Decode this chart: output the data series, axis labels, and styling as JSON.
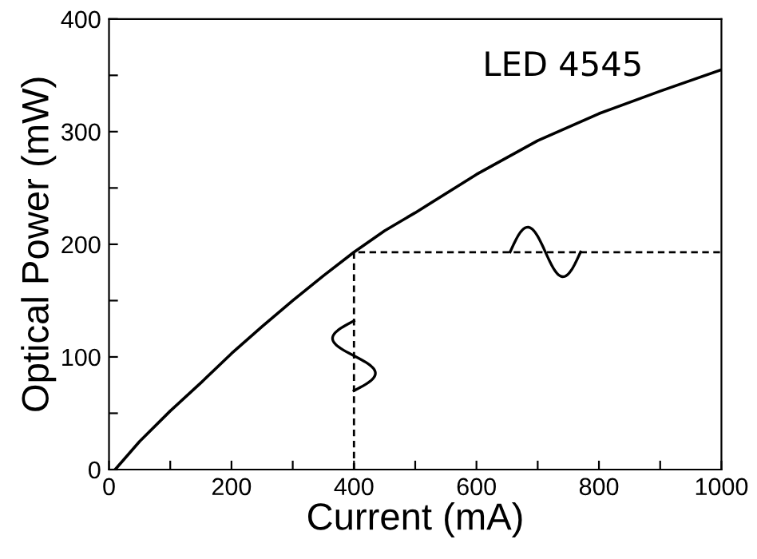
{
  "chart_data": {
    "type": "line",
    "xlabel": "Current (mA)",
    "ylabel": "Optical Power (mW)",
    "annotations": [
      "LED 4545"
    ],
    "series": [
      {
        "color": "#000000",
        "x": [
          10,
          50,
          100,
          150,
          200,
          250,
          300,
          350,
          400,
          450,
          500,
          600,
          700,
          800,
          900,
          1000
        ],
        "values": [
          0,
          25,
          52,
          77,
          103,
          127,
          150,
          172,
          193,
          212,
          228,
          262,
          292,
          316,
          336,
          355
        ],
        "line_style": "solid"
      },
      {
        "color": "#000000",
        "x": [
          400,
          400,
          1000
        ],
        "values": [
          0,
          193,
          193
        ],
        "line_style": "dashed"
      }
    ],
    "xlim": [
      0,
      1000
    ],
    "ylim": [
      0,
      400
    ],
    "xticks": [
      0,
      {
        "value": 100,
        "label": null
      },
      200,
      {
        "value": 300,
        "label": null
      },
      400,
      {
        "value": 500,
        "label": null
      },
      600,
      {
        "value": 700,
        "label": null
      },
      800,
      {
        "value": 900,
        "label": null
      },
      1000
    ],
    "yticks": [
      0,
      {
        "value": 50,
        "label": null
      },
      100,
      {
        "value": 150,
        "label": null
      },
      200,
      {
        "value": 250,
        "label": null
      },
      300,
      {
        "value": 350,
        "label": null
      },
      400
    ],
    "grid": false,
    "legend": false,
    "marker": "none"
  }
}
